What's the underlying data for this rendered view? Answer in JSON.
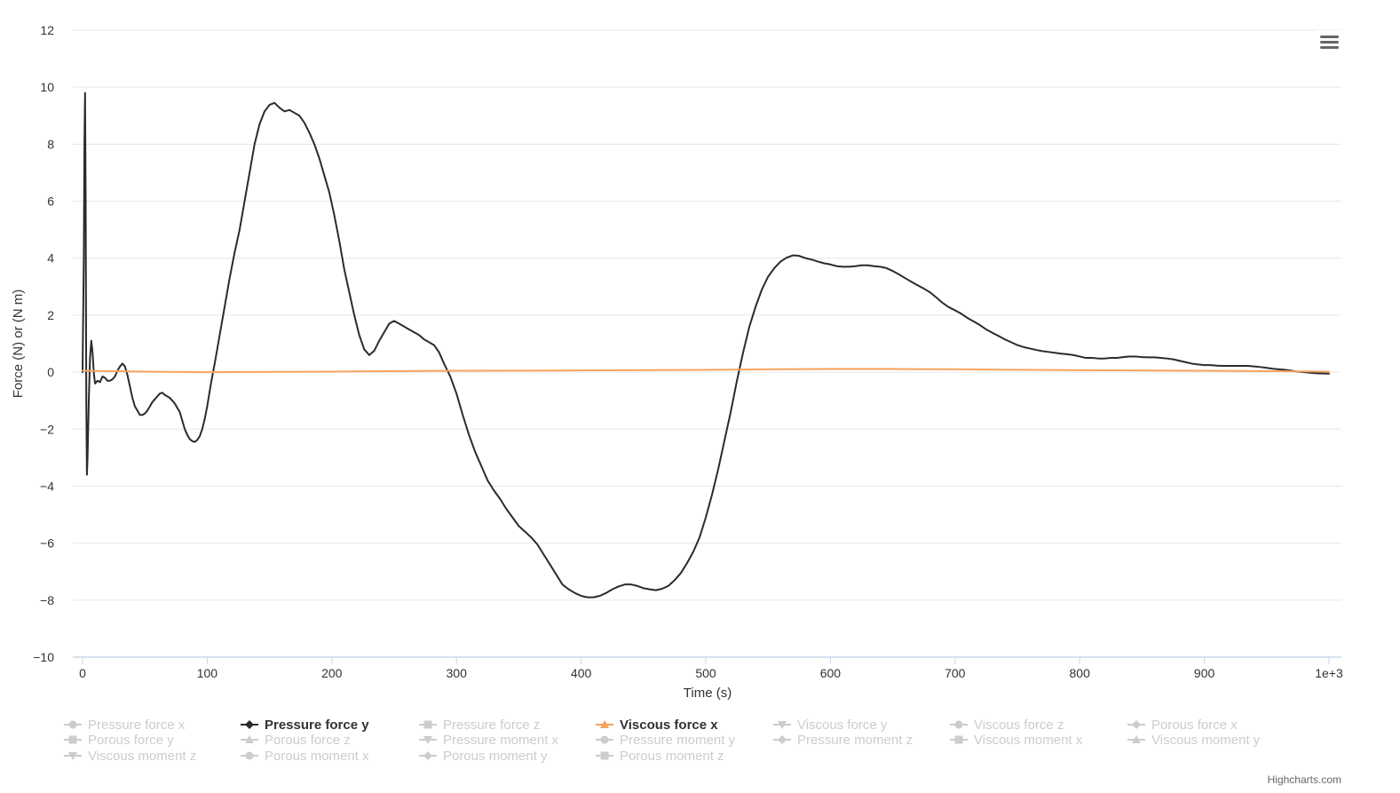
{
  "chart_data": {
    "type": "line",
    "title": "",
    "xlabel": "Time (s)",
    "ylabel": "Force (N) or (N m)",
    "xlim": [
      0,
      1000
    ],
    "ylim": [
      -10,
      12
    ],
    "x_ticks": [
      0,
      100,
      200,
      300,
      400,
      500,
      600,
      700,
      800,
      900,
      1000
    ],
    "x_tick_labels": [
      "0",
      "100",
      "200",
      "300",
      "400",
      "500",
      "600",
      "700",
      "800",
      "900",
      "1e+3"
    ],
    "y_ticks": [
      -10,
      -8,
      -6,
      -4,
      -2,
      0,
      2,
      4,
      6,
      8,
      10,
      12
    ],
    "y_tick_labels": [
      "−10",
      "−8",
      "−6",
      "−4",
      "−2",
      "0",
      "2",
      "4",
      "6",
      "8",
      "10",
      "12"
    ],
    "grid": true,
    "legend_position": "bottom",
    "legend": [
      {
        "name": "Pressure force x",
        "active": false,
        "marker": "circle"
      },
      {
        "name": "Pressure force y",
        "active": true,
        "marker": "diamond",
        "color": "#2b2b2f"
      },
      {
        "name": "Pressure force z",
        "active": false,
        "marker": "square"
      },
      {
        "name": "Viscous force x",
        "active": true,
        "marker": "triangle",
        "color": "#f7a35c"
      },
      {
        "name": "Viscous force y",
        "active": false,
        "marker": "triangle-down"
      },
      {
        "name": "Viscous force z",
        "active": false,
        "marker": "circle"
      },
      {
        "name": "Porous force x",
        "active": false,
        "marker": "diamond"
      },
      {
        "name": "Porous force y",
        "active": false,
        "marker": "square"
      },
      {
        "name": "Porous force z",
        "active": false,
        "marker": "triangle"
      },
      {
        "name": "Pressure moment x",
        "active": false,
        "marker": "triangle-down"
      },
      {
        "name": "Pressure moment y",
        "active": false,
        "marker": "circle"
      },
      {
        "name": "Pressure moment z",
        "active": false,
        "marker": "diamond"
      },
      {
        "name": "Viscous moment x",
        "active": false,
        "marker": "square"
      },
      {
        "name": "Viscous moment y",
        "active": false,
        "marker": "triangle"
      },
      {
        "name": "Viscous moment z",
        "active": false,
        "marker": "triangle-down"
      },
      {
        "name": "Porous moment x",
        "active": false,
        "marker": "circle"
      },
      {
        "name": "Porous moment y",
        "active": false,
        "marker": "diamond"
      },
      {
        "name": "Porous moment z",
        "active": false,
        "marker": "square"
      }
    ],
    "series": [
      {
        "name": "Pressure force y",
        "color": "#2b2b2f",
        "points": [
          [
            0,
            0
          ],
          [
            1,
            4
          ],
          [
            1.5,
            8
          ],
          [
            2,
            9.8
          ],
          [
            2.5,
            6
          ],
          [
            3,
            -1
          ],
          [
            3.5,
            -3.6
          ],
          [
            4,
            -3
          ],
          [
            5,
            -1
          ],
          [
            6,
            0.5
          ],
          [
            7,
            1.1
          ],
          [
            8,
            0.7
          ],
          [
            9,
            0
          ],
          [
            10,
            -0.4
          ],
          [
            12,
            -0.3
          ],
          [
            14,
            -0.35
          ],
          [
            16,
            -0.15
          ],
          [
            18,
            -0.2
          ],
          [
            20,
            -0.3
          ],
          [
            22,
            -0.3
          ],
          [
            24,
            -0.25
          ],
          [
            26,
            -0.15
          ],
          [
            28,
            0.05
          ],
          [
            30,
            0.2
          ],
          [
            32,
            0.3
          ],
          [
            34,
            0.2
          ],
          [
            36,
            -0.1
          ],
          [
            38,
            -0.5
          ],
          [
            40,
            -0.9
          ],
          [
            42,
            -1.2
          ],
          [
            44,
            -1.35
          ],
          [
            46,
            -1.5
          ],
          [
            48,
            -1.5
          ],
          [
            50,
            -1.45
          ],
          [
            52,
            -1.35
          ],
          [
            54,
            -1.2
          ],
          [
            56,
            -1.05
          ],
          [
            58,
            -0.95
          ],
          [
            60,
            -0.85
          ],
          [
            62,
            -0.75
          ],
          [
            64,
            -0.72
          ],
          [
            66,
            -0.8
          ],
          [
            68,
            -0.85
          ],
          [
            70,
            -0.9
          ],
          [
            72,
            -1.0
          ],
          [
            74,
            -1.1
          ],
          [
            76,
            -1.25
          ],
          [
            78,
            -1.4
          ],
          [
            80,
            -1.7
          ],
          [
            82,
            -2.0
          ],
          [
            84,
            -2.2
          ],
          [
            86,
            -2.35
          ],
          [
            88,
            -2.42
          ],
          [
            90,
            -2.45
          ],
          [
            92,
            -2.38
          ],
          [
            94,
            -2.25
          ],
          [
            96,
            -2.0
          ],
          [
            98,
            -1.65
          ],
          [
            100,
            -1.2
          ],
          [
            103,
            -0.4
          ],
          [
            106,
            0.3
          ],
          [
            110,
            1.3
          ],
          [
            114,
            2.3
          ],
          [
            118,
            3.3
          ],
          [
            122,
            4.2
          ],
          [
            126,
            5.0
          ],
          [
            130,
            6.0
          ],
          [
            134,
            7.0
          ],
          [
            138,
            8.0
          ],
          [
            142,
            8.7
          ],
          [
            146,
            9.15
          ],
          [
            150,
            9.38
          ],
          [
            154,
            9.45
          ],
          [
            158,
            9.28
          ],
          [
            162,
            9.15
          ],
          [
            166,
            9.2
          ],
          [
            170,
            9.1
          ],
          [
            174,
            9.0
          ],
          [
            178,
            8.75
          ],
          [
            182,
            8.4
          ],
          [
            186,
            8.0
          ],
          [
            190,
            7.5
          ],
          [
            194,
            6.9
          ],
          [
            198,
            6.3
          ],
          [
            202,
            5.5
          ],
          [
            206,
            4.6
          ],
          [
            210,
            3.6
          ],
          [
            214,
            2.8
          ],
          [
            218,
            2.0
          ],
          [
            222,
            1.3
          ],
          [
            226,
            0.8
          ],
          [
            230,
            0.6
          ],
          [
            234,
            0.75
          ],
          [
            238,
            1.1
          ],
          [
            242,
            1.4
          ],
          [
            246,
            1.7
          ],
          [
            250,
            1.8
          ],
          [
            254,
            1.7
          ],
          [
            258,
            1.6
          ],
          [
            262,
            1.5
          ],
          [
            266,
            1.4
          ],
          [
            270,
            1.3
          ],
          [
            274,
            1.15
          ],
          [
            278,
            1.05
          ],
          [
            282,
            0.95
          ],
          [
            286,
            0.7
          ],
          [
            290,
            0.3
          ],
          [
            295,
            -0.15
          ],
          [
            300,
            -0.75
          ],
          [
            305,
            -1.5
          ],
          [
            310,
            -2.2
          ],
          [
            315,
            -2.8
          ],
          [
            320,
            -3.3
          ],
          [
            325,
            -3.8
          ],
          [
            330,
            -4.15
          ],
          [
            335,
            -4.45
          ],
          [
            340,
            -4.8
          ],
          [
            345,
            -5.1
          ],
          [
            350,
            -5.4
          ],
          [
            355,
            -5.6
          ],
          [
            360,
            -5.8
          ],
          [
            365,
            -6.05
          ],
          [
            370,
            -6.4
          ],
          [
            375,
            -6.75
          ],
          [
            380,
            -7.1
          ],
          [
            385,
            -7.45
          ],
          [
            390,
            -7.62
          ],
          [
            395,
            -7.75
          ],
          [
            400,
            -7.85
          ],
          [
            405,
            -7.9
          ],
          [
            410,
            -7.9
          ],
          [
            415,
            -7.85
          ],
          [
            420,
            -7.75
          ],
          [
            425,
            -7.62
          ],
          [
            430,
            -7.52
          ],
          [
            435,
            -7.45
          ],
          [
            440,
            -7.45
          ],
          [
            445,
            -7.5
          ],
          [
            450,
            -7.58
          ],
          [
            455,
            -7.62
          ],
          [
            460,
            -7.65
          ],
          [
            465,
            -7.6
          ],
          [
            470,
            -7.5
          ],
          [
            475,
            -7.3
          ],
          [
            480,
            -7.05
          ],
          [
            485,
            -6.7
          ],
          [
            490,
            -6.3
          ],
          [
            495,
            -5.8
          ],
          [
            500,
            -5.1
          ],
          [
            505,
            -4.3
          ],
          [
            510,
            -3.4
          ],
          [
            515,
            -2.4
          ],
          [
            520,
            -1.4
          ],
          [
            525,
            -0.3
          ],
          [
            530,
            0.7
          ],
          [
            535,
            1.6
          ],
          [
            540,
            2.3
          ],
          [
            545,
            2.9
          ],
          [
            550,
            3.35
          ],
          [
            555,
            3.65
          ],
          [
            560,
            3.88
          ],
          [
            565,
            4.02
          ],
          [
            570,
            4.1
          ],
          [
            575,
            4.08
          ],
          [
            580,
            4.0
          ],
          [
            585,
            3.95
          ],
          [
            590,
            3.88
          ],
          [
            595,
            3.82
          ],
          [
            600,
            3.78
          ],
          [
            605,
            3.72
          ],
          [
            610,
            3.7
          ],
          [
            615,
            3.7
          ],
          [
            620,
            3.72
          ],
          [
            625,
            3.75
          ],
          [
            630,
            3.75
          ],
          [
            635,
            3.72
          ],
          [
            640,
            3.7
          ],
          [
            645,
            3.65
          ],
          [
            650,
            3.55
          ],
          [
            655,
            3.43
          ],
          [
            660,
            3.3
          ],
          [
            665,
            3.17
          ],
          [
            670,
            3.05
          ],
          [
            675,
            2.93
          ],
          [
            680,
            2.8
          ],
          [
            685,
            2.62
          ],
          [
            690,
            2.43
          ],
          [
            695,
            2.28
          ],
          [
            700,
            2.17
          ],
          [
            705,
            2.05
          ],
          [
            710,
            1.9
          ],
          [
            715,
            1.78
          ],
          [
            720,
            1.65
          ],
          [
            725,
            1.5
          ],
          [
            730,
            1.38
          ],
          [
            735,
            1.27
          ],
          [
            740,
            1.15
          ],
          [
            745,
            1.05
          ],
          [
            750,
            0.95
          ],
          [
            755,
            0.88
          ],
          [
            760,
            0.83
          ],
          [
            765,
            0.78
          ],
          [
            770,
            0.74
          ],
          [
            775,
            0.71
          ],
          [
            780,
            0.68
          ],
          [
            785,
            0.65
          ],
          [
            790,
            0.63
          ],
          [
            795,
            0.6
          ],
          [
            800,
            0.55
          ],
          [
            805,
            0.5
          ],
          [
            810,
            0.5
          ],
          [
            815,
            0.48
          ],
          [
            820,
            0.48
          ],
          [
            825,
            0.5
          ],
          [
            830,
            0.5
          ],
          [
            835,
            0.53
          ],
          [
            840,
            0.55
          ],
          [
            845,
            0.55
          ],
          [
            850,
            0.53
          ],
          [
            855,
            0.52
          ],
          [
            860,
            0.52
          ],
          [
            865,
            0.5
          ],
          [
            870,
            0.48
          ],
          [
            875,
            0.45
          ],
          [
            880,
            0.4
          ],
          [
            885,
            0.35
          ],
          [
            890,
            0.3
          ],
          [
            895,
            0.27
          ],
          [
            900,
            0.25
          ],
          [
            905,
            0.25
          ],
          [
            910,
            0.23
          ],
          [
            915,
            0.22
          ],
          [
            920,
            0.22
          ],
          [
            925,
            0.22
          ],
          [
            930,
            0.22
          ],
          [
            935,
            0.22
          ],
          [
            940,
            0.2
          ],
          [
            945,
            0.18
          ],
          [
            950,
            0.15
          ],
          [
            955,
            0.12
          ],
          [
            960,
            0.1
          ],
          [
            965,
            0.08
          ],
          [
            970,
            0.05
          ],
          [
            975,
            0.02
          ],
          [
            980,
            0
          ],
          [
            985,
            -0.02
          ],
          [
            990,
            -0.04
          ],
          [
            1000,
            -0.05
          ]
        ]
      },
      {
        "name": "Viscous force x",
        "color": "#f7a35c",
        "points": [
          [
            0,
            0.05
          ],
          [
            50,
            0.02
          ],
          [
            100,
            0.0
          ],
          [
            200,
            0.02
          ],
          [
            300,
            0.05
          ],
          [
            400,
            0.06
          ],
          [
            500,
            0.08
          ],
          [
            550,
            0.1
          ],
          [
            600,
            0.11
          ],
          [
            650,
            0.11
          ],
          [
            700,
            0.1
          ],
          [
            800,
            0.07
          ],
          [
            900,
            0.05
          ],
          [
            1000,
            0.02
          ]
        ]
      }
    ],
    "credits": "Highcharts.com"
  }
}
